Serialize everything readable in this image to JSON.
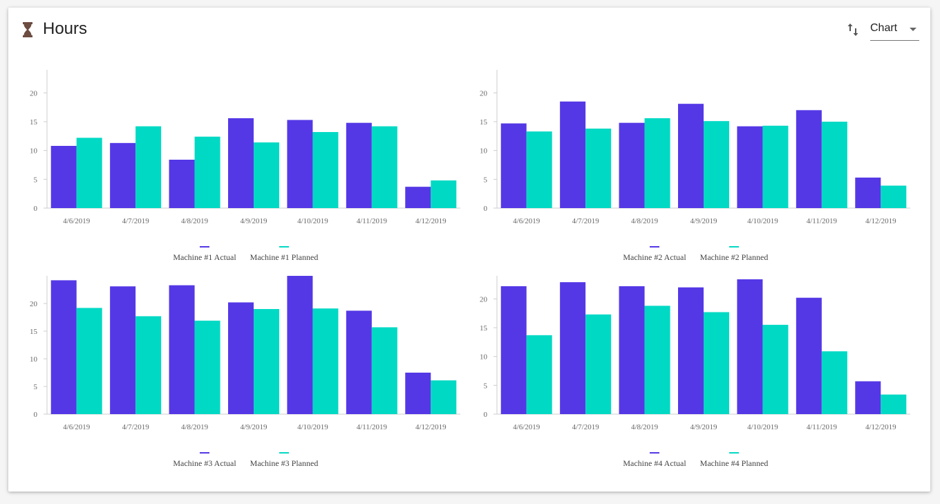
{
  "header": {
    "title": "Hours",
    "icon": "hourglass-icon",
    "sort_icon": "swap-vertical-icon",
    "view_select": {
      "selected": "Chart",
      "icon": "dropdown-caret-icon"
    }
  },
  "colors": {
    "actual": "#5438e6",
    "planned": "#00d9c4",
    "icon": "#6d4c41"
  },
  "chart_data": [
    {
      "type": "bar",
      "categories": [
        "4/6/2019",
        "4/7/2019",
        "4/8/2019",
        "4/9/2019",
        "4/10/2019",
        "4/11/2019",
        "4/12/2019"
      ],
      "series": [
        {
          "name": "Machine #1 Actual",
          "values": [
            10.8,
            11.3,
            8.4,
            15.6,
            15.3,
            14.8,
            3.7
          ]
        },
        {
          "name": "Machine #1 Planned",
          "values": [
            12.2,
            14.2,
            12.4,
            11.4,
            13.2,
            14.2,
            4.8
          ]
        }
      ],
      "yticks": [
        0,
        5,
        10,
        15,
        20
      ],
      "ylim": [
        0,
        24
      ],
      "legend": "bottom",
      "grid": false
    },
    {
      "type": "bar",
      "categories": [
        "4/6/2019",
        "4/7/2019",
        "4/8/2019",
        "4/9/2019",
        "4/10/2019",
        "4/11/2019",
        "4/12/2019"
      ],
      "series": [
        {
          "name": "Machine #2 Actual",
          "values": [
            14.7,
            18.5,
            14.8,
            18.1,
            14.2,
            17.0,
            5.3
          ]
        },
        {
          "name": "Machine #2 Planned",
          "values": [
            13.3,
            13.8,
            15.6,
            15.1,
            14.3,
            15.0,
            3.9
          ]
        }
      ],
      "yticks": [
        0,
        5,
        10,
        15,
        20
      ],
      "ylim": [
        0,
        24
      ],
      "legend": "bottom",
      "grid": false
    },
    {
      "type": "bar",
      "categories": [
        "4/6/2019",
        "4/7/2019",
        "4/8/2019",
        "4/9/2019",
        "4/10/2019",
        "4/11/2019",
        "4/12/2019"
      ],
      "series": [
        {
          "name": "Machine #3 Actual",
          "values": [
            24.2,
            23.1,
            23.3,
            20.2,
            25.0,
            18.7,
            7.5
          ]
        },
        {
          "name": "Machine #3 Planned",
          "values": [
            19.2,
            17.7,
            16.9,
            19.0,
            19.1,
            15.7,
            6.1
          ]
        }
      ],
      "yticks": [
        0,
        5,
        10,
        15,
        20
      ],
      "ylim": [
        0,
        25
      ],
      "legend": "bottom",
      "grid": false
    },
    {
      "type": "bar",
      "categories": [
        "4/6/2019",
        "4/7/2019",
        "4/8/2019",
        "4/9/2019",
        "4/10/2019",
        "4/11/2019",
        "4/12/2019"
      ],
      "series": [
        {
          "name": "Machine #4 Actual",
          "values": [
            22.2,
            22.9,
            22.2,
            22.0,
            23.4,
            20.2,
            5.7
          ]
        },
        {
          "name": "Machine #4 Planned",
          "values": [
            13.7,
            17.3,
            18.8,
            17.7,
            15.5,
            10.9,
            3.4
          ]
        }
      ],
      "yticks": [
        0,
        5,
        10,
        15,
        20
      ],
      "ylim": [
        0,
        24
      ],
      "legend": "bottom",
      "grid": false
    }
  ]
}
